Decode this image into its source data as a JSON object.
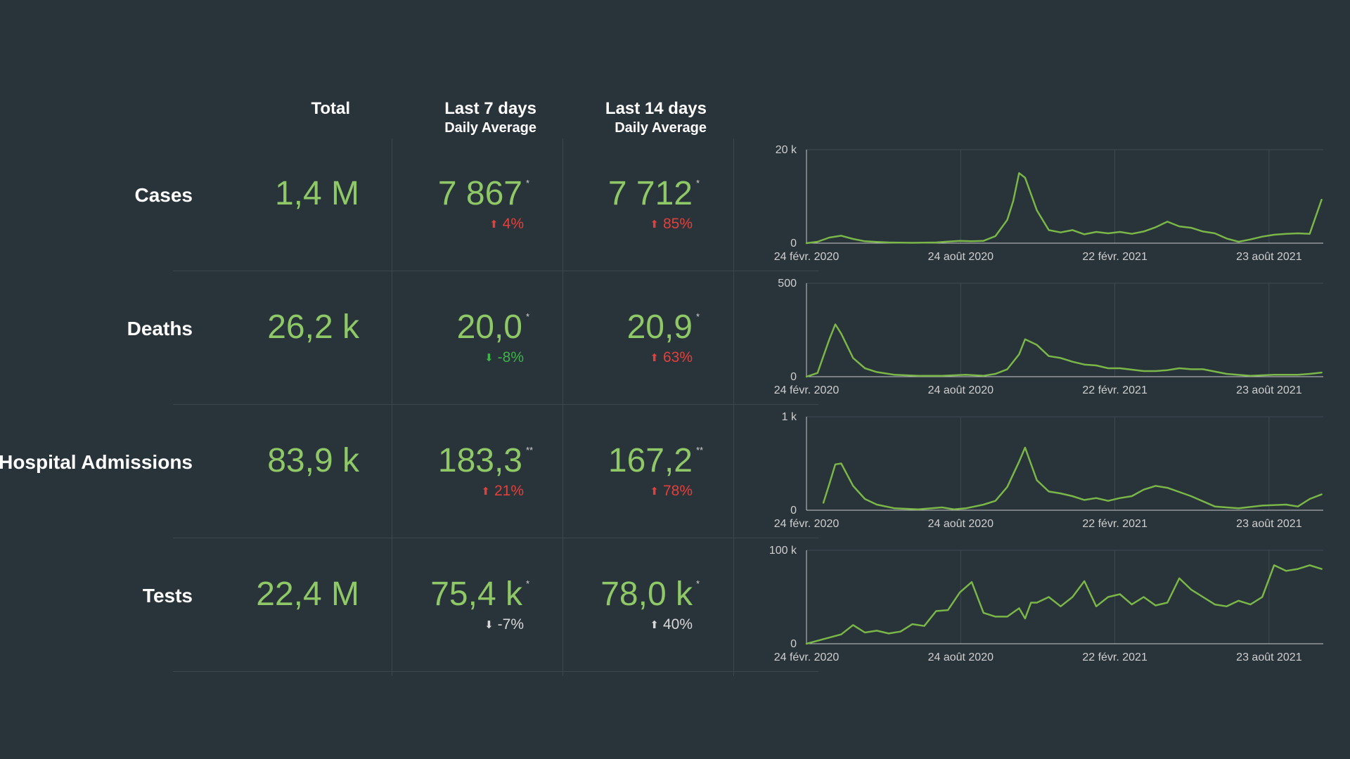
{
  "headers": {
    "total": "Total",
    "last7": "Last 7 days",
    "last7_sub": "Daily Average",
    "last14": "Last 14 days",
    "last14_sub": "Daily Average"
  },
  "rows": [
    {
      "label": "Cases",
      "total": "1,4 M",
      "avg7": "7 867",
      "avg7_mark": "*",
      "chg7": "4%",
      "chg7_dir": "up",
      "avg14": "7 712",
      "avg14_mark": "*",
      "chg14": "85%",
      "chg14_dir": "up"
    },
    {
      "label": "Deaths",
      "total": "26,2 k",
      "avg7": "20,0",
      "avg7_mark": "*",
      "chg7": "-8%",
      "chg7_dir": "down",
      "avg14": "20,9",
      "avg14_mark": "*",
      "chg14": "63%",
      "chg14_dir": "up"
    },
    {
      "label": "Hospital Admissions",
      "total": "83,9 k",
      "avg7": "183,3",
      "avg7_mark": "**",
      "chg7": "21%",
      "chg7_dir": "up",
      "avg14": "167,2",
      "avg14_mark": "**",
      "chg14": "78%",
      "chg14_dir": "up"
    },
    {
      "label": "Tests",
      "total": "22,4 M",
      "avg7": "75,4 k",
      "avg7_mark": "*",
      "chg7": "-7%",
      "chg7_dir": "down",
      "avg14": "78,0 k",
      "avg14_mark": "*",
      "chg14": "40%",
      "chg14_dir": "up"
    }
  ],
  "colors": {
    "background": "#29333a",
    "value_green": "#8fc866",
    "line_green": "#7ab648",
    "increase_red": "#e0413c",
    "decrease_green": "#3fb24a",
    "neutral": "#d8d8d8"
  },
  "chart_data": [
    {
      "type": "line",
      "x_ticks": [
        "24 févr. 2020",
        "24 août 2020",
        "22 févr. 2021",
        "23 août 2021"
      ],
      "y_ticks": [
        "0",
        "20 k"
      ],
      "ylim": [
        0,
        20000
      ],
      "x": [
        "2020-02-24",
        "2020-03-08",
        "2020-03-22",
        "2020-04-05",
        "2020-04-19",
        "2020-05-03",
        "2020-05-17",
        "2020-05-31",
        "2020-06-14",
        "2020-06-28",
        "2020-07-12",
        "2020-07-26",
        "2020-08-09",
        "2020-08-23",
        "2020-09-06",
        "2020-09-20",
        "2020-10-04",
        "2020-10-18",
        "2020-10-25",
        "2020-11-01",
        "2020-11-08",
        "2020-11-22",
        "2020-12-06",
        "2020-12-20",
        "2021-01-03",
        "2021-01-17",
        "2021-01-31",
        "2021-02-14",
        "2021-02-28",
        "2021-03-14",
        "2021-03-28",
        "2021-04-11",
        "2021-04-25",
        "2021-05-09",
        "2021-05-23",
        "2021-06-06",
        "2021-06-20",
        "2021-07-04",
        "2021-07-18",
        "2021-08-01",
        "2021-08-15",
        "2021-08-29",
        "2021-09-12",
        "2021-09-26",
        "2021-10-10",
        "2021-10-24"
      ],
      "series": [
        {
          "values": [
            0,
            300,
            1200,
            1600,
            900,
            400,
            250,
            150,
            100,
            80,
            100,
            150,
            350,
            500,
            400,
            500,
            1500,
            5000,
            9000,
            15000,
            14000,
            7000,
            2800,
            2300,
            2800,
            1900,
            2400,
            2100,
            2400,
            2000,
            2500,
            3400,
            4600,
            3600,
            3300,
            2500,
            2100,
            1000,
            300,
            800,
            1400,
            1800,
            2000,
            2100,
            2000,
            9300
          ]
        }
      ]
    },
    {
      "type": "line",
      "x_ticks": [
        "24 févr. 2020",
        "24 août 2020",
        "22 févr. 2021",
        "23 août 2021"
      ],
      "y_ticks": [
        "0",
        "500"
      ],
      "ylim": [
        0,
        500
      ],
      "x": [
        "2020-02-24",
        "2020-03-08",
        "2020-03-22",
        "2020-03-29",
        "2020-04-05",
        "2020-04-19",
        "2020-05-03",
        "2020-05-17",
        "2020-06-07",
        "2020-07-05",
        "2020-08-02",
        "2020-08-30",
        "2020-09-20",
        "2020-10-04",
        "2020-10-18",
        "2020-11-01",
        "2020-11-08",
        "2020-11-22",
        "2020-12-06",
        "2020-12-20",
        "2021-01-03",
        "2021-01-17",
        "2021-01-31",
        "2021-02-14",
        "2021-02-28",
        "2021-03-28",
        "2021-04-11",
        "2021-04-25",
        "2021-05-09",
        "2021-05-23",
        "2021-06-06",
        "2021-07-04",
        "2021-08-01",
        "2021-08-29",
        "2021-09-26",
        "2021-10-10",
        "2021-10-24"
      ],
      "series": [
        {
          "values": [
            0,
            20,
            200,
            280,
            230,
            100,
            45,
            25,
            10,
            5,
            5,
            10,
            5,
            15,
            40,
            120,
            200,
            170,
            110,
            100,
            80,
            65,
            60,
            45,
            45,
            30,
            30,
            35,
            45,
            40,
            40,
            15,
            5,
            10,
            10,
            15,
            22
          ]
        }
      ]
    },
    {
      "type": "line",
      "x_ticks": [
        "24 févr. 2020",
        "24 août 2020",
        "22 févr. 2021",
        "23 août 2021"
      ],
      "y_ticks": [
        "0",
        "1 k"
      ],
      "ylim": [
        0,
        1000
      ],
      "x": [
        "2020-03-15",
        "2020-03-22",
        "2020-03-29",
        "2020-04-05",
        "2020-04-19",
        "2020-05-03",
        "2020-05-17",
        "2020-06-07",
        "2020-07-05",
        "2020-08-02",
        "2020-08-16",
        "2020-08-30",
        "2020-09-20",
        "2020-10-04",
        "2020-10-18",
        "2020-11-01",
        "2020-11-08",
        "2020-11-22",
        "2020-12-06",
        "2020-12-20",
        "2021-01-03",
        "2021-01-17",
        "2021-01-31",
        "2021-02-14",
        "2021-02-28",
        "2021-03-14",
        "2021-03-28",
        "2021-04-11",
        "2021-04-25",
        "2021-05-23",
        "2021-06-20",
        "2021-07-18",
        "2021-08-15",
        "2021-09-12",
        "2021-09-26",
        "2021-10-10",
        "2021-10-24"
      ],
      "series": [
        {
          "values": [
            80,
            280,
            490,
            500,
            260,
            120,
            60,
            20,
            10,
            30,
            10,
            20,
            60,
            100,
            250,
            520,
            670,
            320,
            200,
            180,
            150,
            110,
            130,
            100,
            130,
            150,
            220,
            260,
            240,
            150,
            40,
            20,
            50,
            60,
            40,
            120,
            170
          ]
        }
      ]
    },
    {
      "type": "line",
      "x_ticks": [
        "24 févr. 2020",
        "24 août 2020",
        "22 févr. 2021",
        "23 août 2021"
      ],
      "y_ticks": [
        "0",
        "100 k"
      ],
      "ylim": [
        0,
        100000
      ],
      "x": [
        "2020-02-24",
        "2020-03-15",
        "2020-04-05",
        "2020-04-19",
        "2020-05-03",
        "2020-05-17",
        "2020-05-31",
        "2020-06-14",
        "2020-06-28",
        "2020-07-12",
        "2020-07-26",
        "2020-08-09",
        "2020-08-23",
        "2020-09-06",
        "2020-09-20",
        "2020-10-04",
        "2020-10-18",
        "2020-11-01",
        "2020-11-08",
        "2020-11-15",
        "2020-11-22",
        "2020-12-06",
        "2020-12-20",
        "2021-01-03",
        "2021-01-17",
        "2021-01-31",
        "2021-02-14",
        "2021-02-28",
        "2021-03-14",
        "2021-03-28",
        "2021-04-11",
        "2021-04-25",
        "2021-05-09",
        "2021-05-23",
        "2021-06-06",
        "2021-06-20",
        "2021-07-04",
        "2021-07-18",
        "2021-08-01",
        "2021-08-15",
        "2021-08-29",
        "2021-09-12",
        "2021-09-26",
        "2021-10-10",
        "2021-10-24"
      ],
      "series": [
        {
          "values": [
            0,
            5000,
            10000,
            20000,
            12000,
            14000,
            11000,
            13000,
            21000,
            19000,
            35000,
            36000,
            55000,
            66000,
            33000,
            29000,
            29000,
            38000,
            27000,
            44000,
            44000,
            50000,
            40000,
            50000,
            67000,
            40000,
            50000,
            53000,
            42000,
            50000,
            41000,
            44000,
            70000,
            58000,
            50000,
            42000,
            40000,
            46000,
            42000,
            50000,
            84000,
            78000,
            80000,
            84000,
            80000
          ]
        }
      ]
    }
  ]
}
